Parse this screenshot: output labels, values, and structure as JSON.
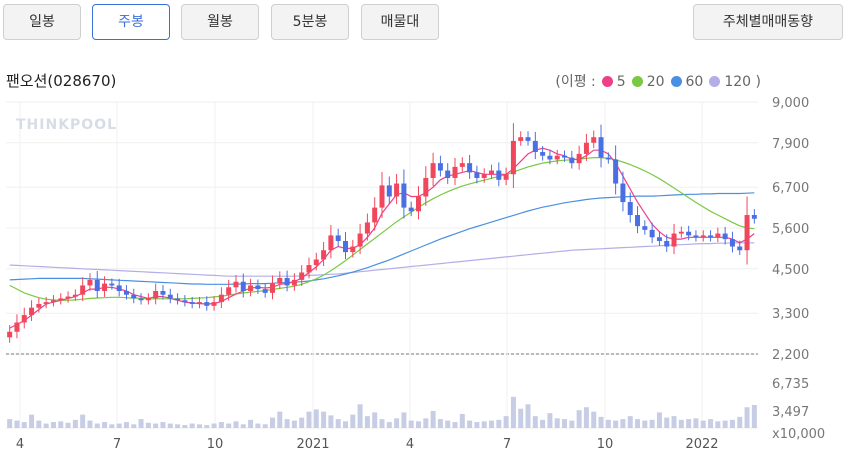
{
  "period_tabs": [
    "일봉",
    "주봉",
    "월봉",
    "5분봉",
    "매물대"
  ],
  "active_tab": "주봉",
  "trend_button": "주체별매매동향",
  "stock_title": "팬오션(028670)",
  "legend": {
    "prefix": "(이평 :",
    "suffix": ")",
    "items": [
      {
        "label": "5",
        "color": "#ef3f89"
      },
      {
        "label": "20",
        "color": "#7ac943"
      },
      {
        "label": "60",
        "color": "#4a90e2"
      },
      {
        "label": "120",
        "color": "#b3aee6"
      }
    ]
  },
  "watermark": "THINKPOOL",
  "chart_data": {
    "type": "candlestick",
    "y_axis_labels": [
      "9,000",
      "7,900",
      "6,700",
      "5,600",
      "4,500",
      "3,300",
      "2,200"
    ],
    "y_range": [
      2200,
      9000
    ],
    "volume_axis_labels": [
      "6,735",
      "3,497",
      "x10,000"
    ],
    "x_axis_labels": [
      "4",
      "7",
      "10",
      "2021",
      "4",
      "7",
      "10",
      "2022"
    ],
    "colors": {
      "up": "#f0475c",
      "down": "#4a6fe3",
      "volume": "#c8cde6",
      "ma5": "#ef3f89",
      "ma20": "#7ac943",
      "ma60": "#4a90e2",
      "ma120": "#b3aee6"
    },
    "closes": [
      2800,
      3050,
      3250,
      3450,
      3550,
      3600,
      3650,
      3700,
      3750,
      3800,
      4050,
      4200,
      3900,
      4100,
      4050,
      3900,
      3800,
      3700,
      3650,
      3700,
      3900,
      3800,
      3700,
      3650,
      3600,
      3550,
      3600,
      3500,
      3600,
      3800,
      4000,
      4150,
      3900,
      4050,
      3950,
      3850,
      4100,
      4250,
      4050,
      4200,
      4400,
      4600,
      4750,
      5000,
      5400,
      5250,
      4950,
      5100,
      5450,
      5750,
      6150,
      6750,
      6450,
      6800,
      6150,
      6050,
      6450,
      6950,
      7350,
      7150,
      6950,
      7250,
      7350,
      7100,
      6950,
      7050,
      7150,
      6900,
      7050,
      7950,
      8050,
      7950,
      7650,
      7550,
      7450,
      7550,
      7500,
      7350,
      7600,
      7900,
      8050,
      7500,
      7450,
      6800,
      6300,
      5950,
      5650,
      5550,
      5350,
      5250,
      5100,
      5450,
      5500,
      5400,
      5350,
      5400,
      5350,
      5450,
      5300,
      5100,
      5000,
      5950,
      5850
    ],
    "ma5": [
      2900,
      3000,
      3100,
      3250,
      3400,
      3550,
      3600,
      3650,
      3700,
      3750,
      3850,
      3950,
      3950,
      4000,
      4000,
      3950,
      3900,
      3800,
      3750,
      3700,
      3750,
      3750,
      3700,
      3650,
      3600,
      3580,
      3560,
      3550,
      3560,
      3620,
      3720,
      3820,
      3900,
      3980,
      4000,
      3980,
      4000,
      4080,
      4100,
      4150,
      4250,
      4400,
      4550,
      4750,
      5000,
      5100,
      5050,
      5050,
      5150,
      5350,
      5600,
      6000,
      6250,
      6500,
      6550,
      6450,
      6450,
      6550,
      6700,
      6900,
      7000,
      7050,
      7100,
      7150,
      7100,
      7050,
      7050,
      7050,
      7050,
      7200,
      7400,
      7600,
      7700,
      7750,
      7700,
      7600,
      7550,
      7450,
      7450,
      7550,
      7700,
      7700,
      7600,
      7350,
      7000,
      6650,
      6300,
      6000,
      5700,
      5500,
      5350,
      5300,
      5300,
      5350,
      5350,
      5350,
      5350,
      5350,
      5350,
      5300,
      5200,
      5300,
      5450
    ],
    "ma20": [
      4050,
      3950,
      3850,
      3780,
      3720,
      3680,
      3660,
      3650,
      3650,
      3660,
      3680,
      3700,
      3710,
      3720,
      3730,
      3730,
      3720,
      3710,
      3700,
      3690,
      3690,
      3690,
      3690,
      3690,
      3690,
      3700,
      3710,
      3720,
      3740,
      3760,
      3790,
      3820,
      3850,
      3870,
      3890,
      3910,
      3940,
      3970,
      4000,
      4030,
      4080,
      4150,
      4230,
      4330,
      4450,
      4580,
      4720,
      4870,
      5020,
      5170,
      5320,
      5470,
      5620,
      5770,
      5900,
      6030,
      6160,
      6280,
      6390,
      6490,
      6580,
      6660,
      6730,
      6790,
      6840,
      6890,
      6940,
      6990,
      7040,
      7110,
      7180,
      7250,
      7300,
      7350,
      7380,
      7410,
      7430,
      7440,
      7460,
      7480,
      7500,
      7500,
      7480,
      7440,
      7380,
      7310,
      7230,
      7140,
      7040,
      6930,
      6810,
      6680,
      6550,
      6420,
      6290,
      6170,
      6050,
      5950,
      5850,
      5750,
      5660,
      5600,
      5580
    ],
    "ma60": [
      4200,
      4210,
      4220,
      4230,
      4240,
      4240,
      4240,
      4240,
      4240,
      4240,
      4240,
      4230,
      4220,
      4210,
      4200,
      4190,
      4180,
      4170,
      4160,
      4150,
      4140,
      4130,
      4120,
      4110,
      4100,
      4090,
      4090,
      4080,
      4080,
      4080,
      4080,
      4090,
      4090,
      4100,
      4100,
      4100,
      4110,
      4120,
      4130,
      4140,
      4150,
      4170,
      4200,
      4230,
      4270,
      4310,
      4360,
      4410,
      4470,
      4530,
      4600,
      4670,
      4740,
      4820,
      4900,
      4980,
      5060,
      5140,
      5220,
      5300,
      5370,
      5440,
      5510,
      5580,
      5640,
      5700,
      5760,
      5820,
      5880,
      5940,
      6000,
      6060,
      6110,
      6160,
      6200,
      6240,
      6280,
      6310,
      6340,
      6370,
      6390,
      6410,
      6420,
      6430,
      6440,
      6450,
      6460,
      6460,
      6460,
      6470,
      6480,
      6490,
      6500,
      6510,
      6510,
      6520,
      6520,
      6530,
      6530,
      6530,
      6530,
      6540,
      6550
    ],
    "ma120": [
      4600,
      4590,
      4580,
      4570,
      4560,
      4550,
      4540,
      4530,
      4520,
      4510,
      4500,
      4490,
      4480,
      4470,
      4460,
      4450,
      4440,
      4430,
      4420,
      4410,
      4400,
      4390,
      4380,
      4370,
      4360,
      4350,
      4340,
      4330,
      4320,
      4310,
      4300,
      4300,
      4300,
      4300,
      4300,
      4300,
      4300,
      4300,
      4300,
      4300,
      4310,
      4320,
      4330,
      4340,
      4350,
      4360,
      4380,
      4400,
      4420,
      4440,
      4460,
      4480,
      4500,
      4520,
      4540,
      4560,
      4580,
      4600,
      4620,
      4640,
      4660,
      4680,
      4700,
      4720,
      4740,
      4760,
      4780,
      4800,
      4820,
      4840,
      4860,
      4880,
      4900,
      4920,
      4940,
      4960,
      4980,
      5000,
      5010,
      5020,
      5030,
      5040,
      5050,
      5060,
      5070,
      5080,
      5090,
      5100,
      5110,
      5120,
      5130,
      5140,
      5150,
      5160,
      5170,
      5180,
      5180,
      5190,
      5190,
      5200,
      5200,
      5200,
      5200
    ],
    "volume": [
      1.2,
      1.0,
      0.8,
      1.8,
      1.0,
      0.6,
      0.8,
      0.9,
      0.7,
      1.1,
      1.8,
      1.0,
      0.6,
      0.8,
      0.5,
      0.6,
      0.8,
      0.5,
      1.2,
      0.7,
      0.6,
      0.8,
      0.6,
      0.5,
      0.4,
      0.6,
      0.5,
      0.4,
      0.6,
      0.8,
      0.6,
      0.9,
      0.5,
      1.1,
      0.6,
      0.5,
      1.4,
      2.2,
      1.2,
      1.0,
      1.4,
      2.2,
      2.5,
      2.2,
      1.7,
      1.2,
      0.9,
      1.8,
      3.2,
      1.6,
      2.1,
      1.2,
      0.8,
      1.3,
      2.1,
      1.0,
      0.9,
      1.3,
      2.3,
      1.2,
      1.0,
      0.8,
      1.9,
      1.0,
      0.8,
      0.9,
      1.0,
      1.1,
      1.6,
      4.2,
      2.6,
      3.2,
      1.6,
      1.1,
      2.0,
      1.3,
      1.2,
      1.0,
      2.4,
      2.8,
      2.2,
      1.5,
      1.1,
      1.0,
      1.2,
      1.6,
      1.2,
      1.0,
      1.1,
      2.1,
      1.4,
      1.6,
      1.1,
      1.2,
      1.3,
      1.0,
      1.2,
      0.9,
      1.0,
      1.1,
      1.5,
      2.8,
      3.1
    ],
    "volume_max": 6.735
  }
}
